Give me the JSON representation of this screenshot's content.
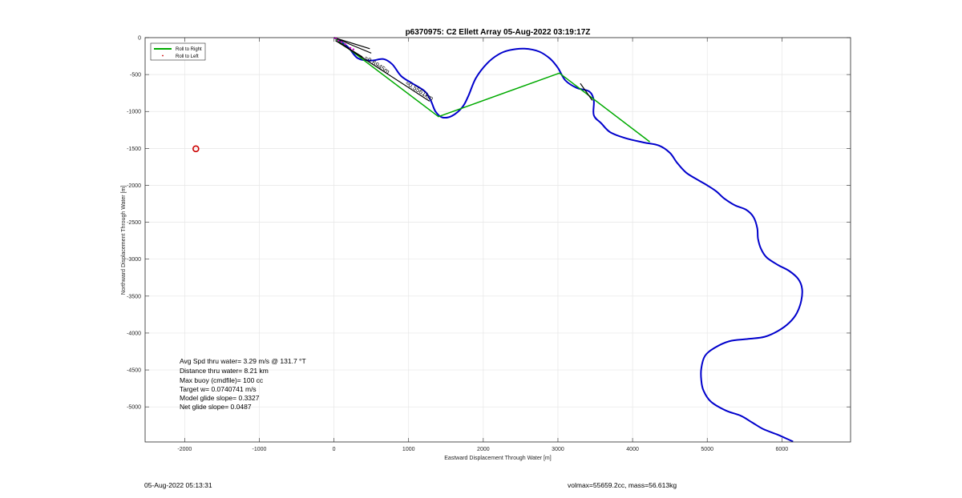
{
  "chart_data": {
    "type": "line",
    "title": "p6370975: C2 Ellett Array 05-Aug-2022 03:19:17Z",
    "xlabel": "Eastward Displacement Through Water [m]",
    "ylabel": "Northward Displacement Through Water [m]",
    "xlim": [
      -2530,
      6920
    ],
    "ylim": [
      -5475,
      0
    ],
    "x_ticks": [
      -2000,
      -1000,
      0,
      1000,
      2000,
      3000,
      4000,
      5000,
      6000
    ],
    "x_tick_labels": [
      "-2000",
      "-1000",
      "0",
      "1000",
      "2000",
      "3000",
      "4000",
      "5000",
      "6000"
    ],
    "y_ticks": [
      0,
      -500,
      -1000,
      -1500,
      -2000,
      -2500,
      -3000,
      -3500,
      -4000,
      -4500,
      -5000
    ],
    "y_tick_labels": [
      "0",
      "-500",
      "-1000",
      "-1500",
      "-2000",
      "-2500",
      "-3000",
      "-3500",
      "-4000",
      "-4500",
      "-5000"
    ],
    "grid": true,
    "legend_placement": "top-left",
    "legend": [
      {
        "name": "Roll to Right",
        "color": "#00aa00",
        "style": "line"
      },
      {
        "name": "Roll to Left",
        "color": "#cc0000",
        "style": "dot"
      }
    ],
    "series": [
      {
        "name": "track",
        "color": "#0000cc",
        "style": "line",
        "points": [
          [
            0,
            0
          ],
          [
            180,
            -120
          ],
          [
            320,
            -280
          ],
          [
            500,
            -310
          ],
          [
            660,
            -290
          ],
          [
            780,
            -360
          ],
          [
            900,
            -520
          ],
          [
            1050,
            -620
          ],
          [
            1220,
            -730
          ],
          [
            1300,
            -860
          ],
          [
            1360,
            -1000
          ],
          [
            1450,
            -1080
          ],
          [
            1580,
            -1060
          ],
          [
            1720,
            -940
          ],
          [
            1800,
            -790
          ],
          [
            1900,
            -550
          ],
          [
            2050,
            -350
          ],
          [
            2200,
            -230
          ],
          [
            2350,
            -170
          ],
          [
            2550,
            -150
          ],
          [
            2750,
            -190
          ],
          [
            2900,
            -290
          ],
          [
            3000,
            -410
          ],
          [
            3100,
            -580
          ],
          [
            3250,
            -680
          ],
          [
            3420,
            -730
          ],
          [
            3480,
            -850
          ],
          [
            3480,
            -1050
          ],
          [
            3580,
            -1160
          ],
          [
            3700,
            -1280
          ],
          [
            3900,
            -1360
          ],
          [
            4150,
            -1420
          ],
          [
            4350,
            -1460
          ],
          [
            4500,
            -1560
          ],
          [
            4600,
            -1700
          ],
          [
            4720,
            -1830
          ],
          [
            4880,
            -1930
          ],
          [
            5000,
            -2000
          ],
          [
            5120,
            -2080
          ],
          [
            5230,
            -2180
          ],
          [
            5370,
            -2270
          ],
          [
            5520,
            -2330
          ],
          [
            5620,
            -2430
          ],
          [
            5670,
            -2580
          ],
          [
            5680,
            -2720
          ],
          [
            5720,
            -2860
          ],
          [
            5800,
            -2980
          ],
          [
            5950,
            -3080
          ],
          [
            6100,
            -3160
          ],
          [
            6220,
            -3270
          ],
          [
            6270,
            -3400
          ],
          [
            6260,
            -3560
          ],
          [
            6200,
            -3730
          ],
          [
            6100,
            -3860
          ],
          [
            5950,
            -3970
          ],
          [
            5770,
            -4050
          ],
          [
            5550,
            -4080
          ],
          [
            5300,
            -4110
          ],
          [
            5100,
            -4200
          ],
          [
            4970,
            -4310
          ],
          [
            4920,
            -4480
          ],
          [
            4920,
            -4640
          ],
          [
            4950,
            -4780
          ],
          [
            5050,
            -4930
          ],
          [
            5250,
            -5050
          ],
          [
            5450,
            -5120
          ],
          [
            5600,
            -5210
          ],
          [
            5750,
            -5300
          ],
          [
            5950,
            -5380
          ],
          [
            6150,
            -5470
          ]
        ]
      },
      {
        "name": "roll",
        "color": "#00aa00",
        "style": "line",
        "points": [
          [
            0,
            0
          ],
          [
            1400,
            -1070
          ],
          [
            3020,
            -480
          ],
          [
            4230,
            -1410
          ]
        ]
      },
      {
        "name": "heading",
        "color": "#000000",
        "style": "line",
        "segments": [
          [
            [
              0,
              0
            ],
            [
              500,
              -210
            ]
          ],
          [
            [
              0,
              0
            ],
            [
              480,
              -150
            ]
          ],
          [
            [
              20,
              -40
            ],
            [
              400,
              -280
            ]
          ],
          [
            [
              60,
              -60
            ],
            [
              380,
              -260
            ]
          ],
          [
            [
              120,
              -100
            ],
            [
              1280,
              -860
            ]
          ],
          [
            [
              3300,
              -620
            ],
            [
              3460,
              -850
            ]
          ]
        ]
      },
      {
        "name": "start",
        "color": "#cc00cc",
        "style": "dots",
        "points": [
          [
            10,
            -5
          ],
          [
            30,
            -10
          ],
          [
            60,
            -40
          ],
          [
            100,
            -60
          ],
          [
            150,
            -90
          ],
          [
            220,
            -140
          ],
          [
            260,
            -160
          ]
        ]
      }
    ],
    "markers": [
      {
        "x": -1850,
        "y": -1505,
        "color": "#cc0000",
        "shape": "circle"
      }
    ],
    "annotations": [
      {
        "text": "≈0.6945m",
        "x": 400,
        "y": -290
      },
      {
        "text": "≈0.5561km",
        "x": 950,
        "y": -630
      }
    ],
    "stats": [
      "Avg Spd thru water=  3.29 m/s @ 131.7 °T",
      "Distance thru water=  8.21 km",
      "Max buoy (cmdfile)= 100 cc",
      "Target w= 0.0740741 m/s",
      "Model glide slope= 0.3327",
      "Net glide slope= 0.0487"
    ]
  },
  "footer": {
    "left": "05-Aug-2022 05:13:31",
    "right": "volmax=55659.2cc, mass=56.613kg"
  }
}
